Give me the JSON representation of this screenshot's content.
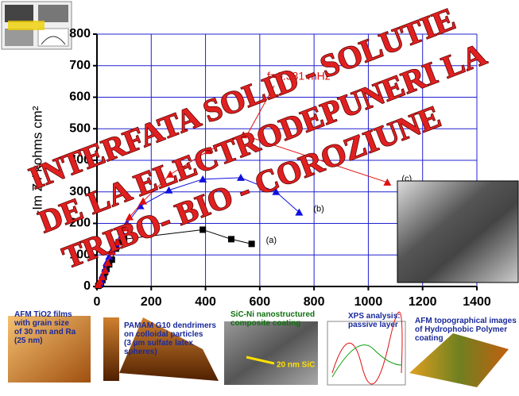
{
  "chart_data": {
    "type": "scatter-line",
    "ylabel": "-Im Z / kohms cm²",
    "xlim": [
      0,
      1400
    ],
    "xticks": [
      0,
      200,
      400,
      600,
      800,
      1000,
      1200,
      1400
    ],
    "ylim": [
      0,
      800
    ],
    "yticks": [
      0,
      100,
      200,
      300,
      400,
      500,
      600,
      700,
      800
    ],
    "grid": true,
    "annotation": "f=0.381 mHz",
    "series": [
      {
        "name": "(a)",
        "color": "#000000",
        "marker": "square",
        "x": [
          5,
          10,
          15,
          20,
          25,
          30,
          35,
          45,
          55,
          70,
          80,
          100,
          390,
          495,
          570
        ],
        "values": [
          2,
          5,
          10,
          20,
          30,
          45,
          55,
          70,
          85,
          120,
          140,
          150,
          180,
          150,
          135
        ]
      },
      {
        "name": "(b)",
        "color": "#1010e0",
        "marker": "triangle",
        "x": [
          5,
          10,
          15,
          20,
          30,
          35,
          45,
          55,
          70,
          90,
          110,
          160,
          265,
          390,
          530,
          660,
          745
        ],
        "values": [
          5,
          10,
          20,
          35,
          55,
          75,
          95,
          115,
          135,
          175,
          200,
          255,
          305,
          340,
          345,
          300,
          235
        ]
      },
      {
        "name": "(c)",
        "color": "#e01010",
        "marker": "triangle",
        "x": [
          5,
          10,
          20,
          30,
          40,
          55,
          75,
          100,
          120,
          170,
          270,
          410,
          540,
          1070
        ],
        "values": [
          5,
          15,
          30,
          50,
          75,
          110,
          140,
          185,
          220,
          270,
          355,
          430,
          480,
          330
        ]
      }
    ]
  },
  "overlay": {
    "lines": [
      "INTERFATA SOLID - SOLUTIE",
      "DE LA ELECTRODEPUNERI LA",
      "TRIBO- BIO - COROZIUNE"
    ]
  },
  "thumbnails": {
    "afm_tio2": "AFM TiO2 films with grain size of 30 nm and Ra (25 nm)",
    "pamam": "PAMAM G10 dendrimers on colloidal particles (3 µm sulfate latex spheres)",
    "sic_ni": "SiC-Ni nanostructured composite coating",
    "sic_scale": "20 nm SiC",
    "xps": "XPS analysis: passive layer",
    "afm_polymer": "AFM topographical images of Hydrophobic Polymer coating"
  }
}
